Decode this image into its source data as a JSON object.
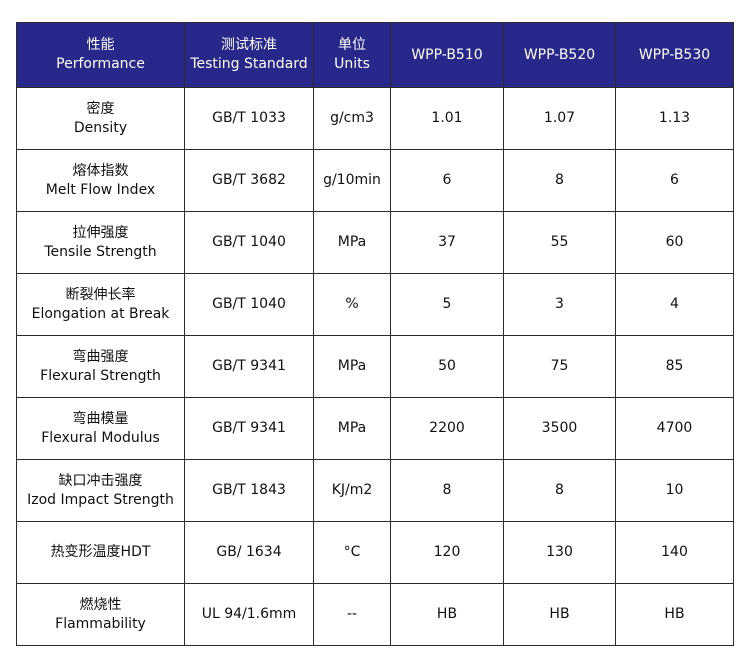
{
  "header": {
    "performance_cn": "性能",
    "performance_en": "Performance",
    "standard_cn": "测试标准",
    "standard_en": "Testing Standard",
    "units_cn": "单位",
    "units_en": "Units",
    "products": [
      "WPP-B510",
      "WPP-B520",
      "WPP-B530"
    ]
  },
  "rows": [
    {
      "name_cn": "密度",
      "name_en": "Density",
      "standard": "GB/T 1033",
      "unit": "g/cm3",
      "values": [
        "1.01",
        "1.07",
        "1.13"
      ]
    },
    {
      "name_cn": "熔体指数",
      "name_en": "Melt Flow Index",
      "standard": "GB/T 3682",
      "unit": "g/10min",
      "values": [
        "6",
        "8",
        "6"
      ]
    },
    {
      "name_cn": "拉伸强度",
      "name_en": "Tensile Strength",
      "standard": "GB/T 1040",
      "unit": "MPa",
      "values": [
        "37",
        "55",
        "60"
      ]
    },
    {
      "name_cn": "断裂伸长率",
      "name_en": "Elongation at Break",
      "standard": "GB/T 1040",
      "unit": "%",
      "values": [
        "5",
        "3",
        "4"
      ]
    },
    {
      "name_cn": "弯曲强度",
      "name_en": "Flexural Strength",
      "standard": "GB/T 9341",
      "unit": "MPa",
      "values": [
        "50",
        "75",
        "85"
      ]
    },
    {
      "name_cn": "弯曲模量",
      "name_en": "Flexural Modulus",
      "standard": "GB/T 9341",
      "unit": "MPa",
      "values": [
        "2200",
        "3500",
        "4700"
      ]
    },
    {
      "name_cn": "缺口冲击强度",
      "name_en": "Izod Impact Strength",
      "standard": "GB/T 1843",
      "unit": "KJ/m2",
      "values": [
        "8",
        "8",
        "10"
      ]
    },
    {
      "name_cn": "热变形温度HDT",
      "name_en": "",
      "standard": "GB/ 1634",
      "unit": "°C",
      "values": [
        "120",
        "130",
        "140"
      ]
    },
    {
      "name_cn": "燃烧性",
      "name_en": "Flammability",
      "standard": "UL 94/1.6mm",
      "unit": "--",
      "values": [
        "HB",
        "HB",
        "HB"
      ]
    }
  ],
  "colors": {
    "header_bg": "#28288a",
    "header_text": "#ffffff",
    "border": "#2b2b2b"
  }
}
